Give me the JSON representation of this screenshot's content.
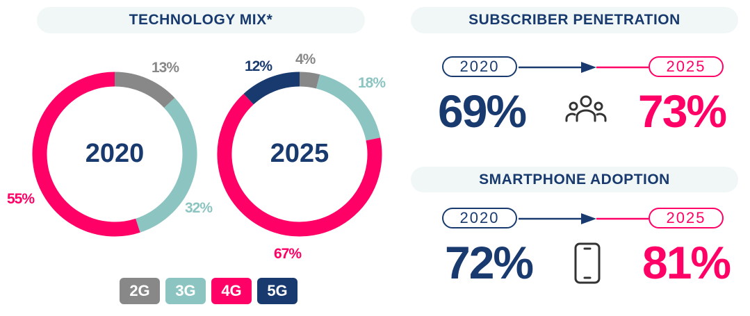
{
  "colors": {
    "2G": "#888888",
    "3G": "#8BC4C1",
    "4G": "#FF0066",
    "5G": "#183A6E",
    "navy": "#183A6E",
    "pink": "#FF0066"
  },
  "technology_mix": {
    "title": "TECHNOLOGY MIX*"
  },
  "legend": [
    "2G",
    "3G",
    "4G",
    "5G"
  ],
  "chart_data": [
    {
      "type": "pie",
      "title": "2020",
      "categories": [
        "2G",
        "3G",
        "4G"
      ],
      "values": [
        13,
        32,
        55
      ],
      "labels": [
        "13%",
        "32%",
        "55%"
      ]
    },
    {
      "type": "pie",
      "title": "2025",
      "categories": [
        "2G",
        "3G",
        "4G",
        "5G"
      ],
      "values": [
        4,
        18,
        67,
        12
      ],
      "labels": [
        "4%",
        "18%",
        "67%",
        "12%"
      ]
    }
  ],
  "subscriber": {
    "title": "SUBSCRIBER PENETRATION",
    "from_year": "2020",
    "to_year": "2025",
    "from_value": "69%",
    "to_value": "73%",
    "icon": "people-icon"
  },
  "smartphone": {
    "title": "SMARTPHONE ADOPTION",
    "from_year": "2020",
    "to_year": "2025",
    "from_value": "72%",
    "to_value": "81%",
    "icon": "smartphone-icon"
  }
}
